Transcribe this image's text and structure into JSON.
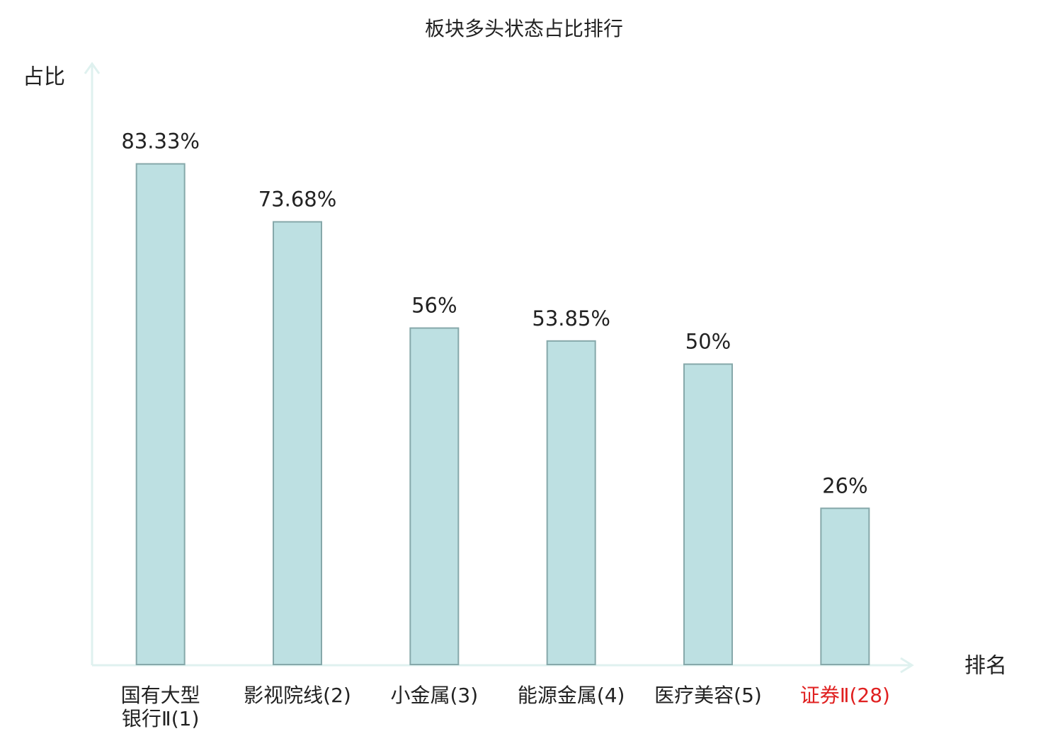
{
  "chart_data": {
    "type": "bar",
    "title": "板块多头状态占比排行",
    "y_label": "占比",
    "x_label": "排名",
    "categories": [
      "国有大型\n银行Ⅱ(1)",
      "影视院线(2)",
      "小金属(3)",
      "能源金属(4)",
      "医疗美容(5)",
      "证券Ⅱ(28)"
    ],
    "values": [
      83.33,
      73.68,
      56,
      53.85,
      50,
      26
    ],
    "value_labels": [
      "83.33%",
      "73.68%",
      "56%",
      "53.85%",
      "50%",
      "26%"
    ],
    "color": "#bde0e2",
    "edge_color": "#86a8aa",
    "label_colors": [
      "#222222",
      "#222222",
      "#222222",
      "#222222",
      "#222222",
      "#e02020"
    ],
    "ylim": [
      0,
      100
    ]
  }
}
